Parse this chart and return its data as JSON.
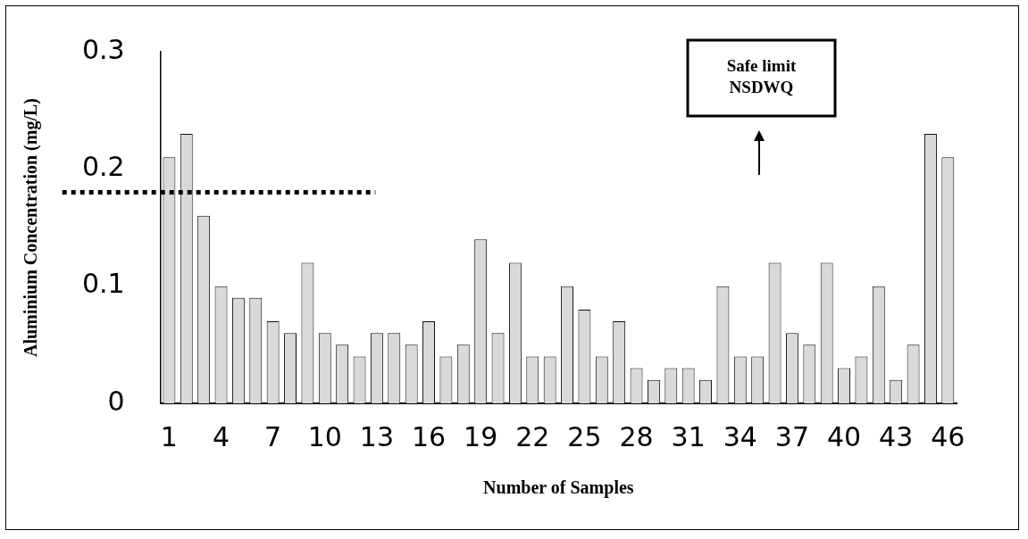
{
  "chart_data": {
    "type": "bar",
    "xlabel": "Number of Samples",
    "ylabel": "Aluminium Concentration (mg/L)",
    "categories": [
      "1",
      null,
      null,
      "4",
      null,
      null,
      "7",
      null,
      null,
      "10",
      null,
      null,
      "13",
      null,
      null,
      "16",
      null,
      null,
      "19",
      null,
      null,
      "22",
      null,
      null,
      "25",
      null,
      null,
      "28",
      null,
      null,
      "31",
      null,
      null,
      "34",
      null,
      null,
      "37",
      null,
      null,
      "40",
      null,
      null,
      "43",
      null,
      null,
      "46"
    ],
    "values": [
      0.21,
      0.23,
      0.16,
      0.1,
      0.09,
      0.09,
      0.07,
      0.06,
      0.12,
      0.06,
      0.05,
      0.04,
      0.06,
      0.06,
      0.05,
      0.07,
      0.04,
      0.05,
      0.14,
      0.06,
      0.12,
      0.04,
      0.04,
      0.1,
      0.08,
      0.04,
      0.07,
      0.03,
      0.02,
      0.03,
      0.03,
      0.02,
      0.1,
      0.04,
      0.04,
      0.12,
      0.06,
      0.05,
      0.12,
      0.03,
      0.04,
      0.1,
      0.02,
      0.05,
      0.23,
      0.21
    ],
    "color": "#d9d9d9",
    "ylim": [
      0,
      0.3
    ],
    "yticks": [
      0,
      0.1,
      0.2,
      0.3
    ],
    "grid": false,
    "legend": false,
    "ref_lines": [
      {
        "axis": "y",
        "value": 0.18,
        "label": "Safe limit\nNSDWQ",
        "color": "#000000",
        "line_style": "dotted"
      }
    ]
  }
}
